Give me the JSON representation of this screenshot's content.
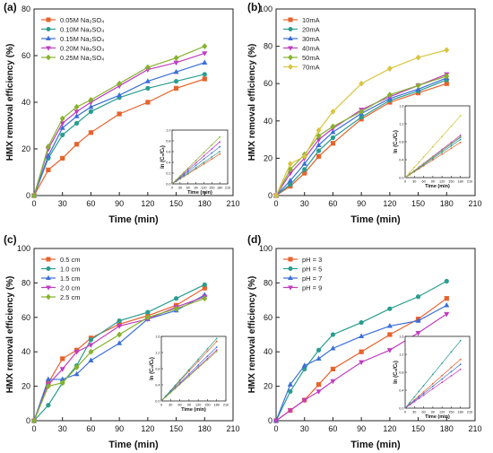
{
  "chart_data": [
    {
      "type": "line",
      "panel_label": "(a)",
      "xlabel": "Time (min)",
      "ylabel": "HMX removal efficiency (%)",
      "xlim": [
        0,
        210
      ],
      "ylim": [
        0,
        80
      ],
      "xticks": [
        "0",
        "30",
        "60",
        "90",
        "120",
        "150",
        "180",
        "210"
      ],
      "yticks": [
        "0",
        "20",
        "40",
        "60",
        "80"
      ],
      "x": [
        0,
        15,
        30,
        45,
        60,
        90,
        120,
        150,
        180
      ],
      "legend_position": "top-left",
      "series": [
        {
          "name": "0.05M Na₂SO₄",
          "color": "#e8622c",
          "marker": "square",
          "values": [
            0,
            11,
            16,
            22,
            27,
            35,
            40,
            46,
            50
          ]
        },
        {
          "name": "0.10M Na₂SO₄",
          "color": "#2a9d8f",
          "marker": "circle",
          "values": [
            0,
            16,
            26,
            31,
            36,
            42,
            46,
            49,
            52
          ]
        },
        {
          "name": "0.15M Na₂SO₄",
          "color": "#3b6fd8",
          "marker": "triangle-up",
          "values": [
            0,
            17,
            29,
            34,
            38,
            43,
            49,
            53,
            57
          ]
        },
        {
          "name": "0.20M Na₂SO₄",
          "color": "#c03cc0",
          "marker": "triangle-down",
          "values": [
            0,
            20,
            31,
            36,
            40,
            47,
            54,
            57,
            61
          ]
        },
        {
          "name": "0.25M Na₂SO₄",
          "color": "#86b22d",
          "marker": "diamond",
          "values": [
            0,
            21,
            33,
            38,
            41,
            48,
            55,
            59,
            64
          ]
        }
      ],
      "inset": {
        "type": "scatter",
        "ylabel": "ln (C₀/Cₜ)",
        "xlabel": "Time (min)",
        "xlim": [
          0,
          210
        ],
        "ylim": [
          0,
          1.2
        ],
        "xticks": [
          "0",
          "30",
          "60",
          "90",
          "120",
          "150",
          "180",
          "210"
        ],
        "yticks": [
          "0.0",
          "0.2",
          "0.4",
          "0.6",
          "0.8",
          "1.0"
        ],
        "slopes": [
          0.0037,
          0.004,
          0.0046,
          0.0052,
          0.0058
        ]
      }
    },
    {
      "type": "line",
      "panel_label": "(b)",
      "xlabel": "Time (min)",
      "ylabel": "HMX removal efficiency (%)",
      "xlim": [
        0,
        210
      ],
      "ylim": [
        0,
        100
      ],
      "xticks": [
        "0",
        "30",
        "60",
        "90",
        "120",
        "150",
        "180",
        "210"
      ],
      "yticks": [
        "0",
        "20",
        "40",
        "60",
        "80",
        "100"
      ],
      "x": [
        0,
        15,
        30,
        45,
        60,
        90,
        120,
        150,
        180
      ],
      "legend_position": "top-left",
      "series": [
        {
          "name": "10mA",
          "color": "#e8622c",
          "marker": "square",
          "values": [
            0,
            5,
            12,
            21,
            28,
            41,
            50,
            55,
            60
          ]
        },
        {
          "name": "20mA",
          "color": "#2a9d8f",
          "marker": "circle",
          "values": [
            0,
            6,
            14,
            24,
            31,
            42,
            51,
            56,
            62
          ]
        },
        {
          "name": "30mA",
          "color": "#3b6fd8",
          "marker": "triangle-up",
          "values": [
            0,
            8,
            17,
            27,
            34,
            44,
            52,
            57,
            63
          ]
        },
        {
          "name": "40mA",
          "color": "#c03cc0",
          "marker": "triangle-down",
          "values": [
            0,
            12,
            20,
            30,
            36,
            46,
            53,
            59,
            65
          ]
        },
        {
          "name": "50mA",
          "color": "#86b22d",
          "marker": "diamond",
          "values": [
            0,
            14,
            22,
            32,
            37,
            45,
            54,
            59,
            64
          ]
        },
        {
          "name": "70mA",
          "color": "#d9c441",
          "marker": "diamond",
          "values": [
            0,
            17,
            21,
            35,
            45,
            60,
            68,
            74,
            78
          ]
        }
      ],
      "inset": {
        "type": "scatter",
        "ylabel": "ln (C₀/Cₜ)",
        "xlabel": "Time (min)",
        "xlim": [
          0,
          210
        ],
        "ylim": [
          0,
          1.8
        ],
        "xticks": [
          "0",
          "30",
          "60",
          "90",
          "120",
          "150",
          "180",
          "210"
        ],
        "yticks": [
          "0.0",
          "0.4",
          "0.8",
          "1.2",
          "1.6"
        ],
        "slopes": [
          0.0049,
          0.0053,
          0.0056,
          0.0059,
          0.0057,
          0.0086
        ]
      }
    },
    {
      "type": "line",
      "panel_label": "(c)",
      "xlabel": "Time (min)",
      "ylabel": "HMX removal efficiency (%)",
      "xlim": [
        0,
        210
      ],
      "ylim": [
        0,
        100
      ],
      "xticks": [
        "0",
        "30",
        "60",
        "90",
        "120",
        "150",
        "180",
        "210"
      ],
      "yticks": [
        "0",
        "20",
        "40",
        "60",
        "80",
        "100"
      ],
      "x": [
        0,
        15,
        30,
        45,
        60,
        90,
        120,
        150,
        180
      ],
      "legend_position": "top-left",
      "series": [
        {
          "name": "0.5 cm",
          "color": "#e8622c",
          "marker": "square",
          "values": [
            0,
            22,
            36,
            41,
            48,
            56,
            61,
            67,
            77
          ]
        },
        {
          "name": "1.0 cm",
          "color": "#2a9d8f",
          "marker": "circle",
          "values": [
            0,
            9,
            22,
            32,
            47,
            58,
            63,
            71,
            79
          ]
        },
        {
          "name": "1.5 cm",
          "color": "#3b6fd8",
          "marker": "triangle-up",
          "values": [
            0,
            24,
            24,
            27,
            35,
            45,
            59,
            64,
            73
          ]
        },
        {
          "name": "2.0 cm",
          "color": "#c03cc0",
          "marker": "triangle-down",
          "values": [
            0,
            21,
            30,
            40,
            44,
            55,
            59,
            66,
            72
          ]
        },
        {
          "name": "2.5 cm",
          "color": "#86b22d",
          "marker": "diamond",
          "values": [
            0,
            20,
            22,
            31,
            40,
            50,
            60,
            65,
            71
          ]
        }
      ],
      "inset": {
        "type": "scatter",
        "ylabel": "ln (C₀/Cₜ)",
        "xlabel": "Time (min)",
        "xlim": [
          0,
          210
        ],
        "ylim": [
          0,
          1.6
        ],
        "xticks": [
          "0",
          "30",
          "60",
          "90",
          "120",
          "150",
          "180",
          "210"
        ],
        "yticks": [
          "0.0",
          "0.4",
          "0.8",
          "1.2",
          "1.6"
        ],
        "slopes": [
          0.0082,
          0.0086,
          0.0074,
          0.007,
          0.0068
        ]
      }
    },
    {
      "type": "line",
      "panel_label": "(d)",
      "xlabel": "Time (min)",
      "ylabel": "HMX removal efficiency (%)",
      "xlim": [
        0,
        210
      ],
      "ylim": [
        0,
        100
      ],
      "xticks": [
        "0",
        "30",
        "60",
        "90",
        "120",
        "150",
        "180",
        "210"
      ],
      "yticks": [
        "0",
        "20",
        "40",
        "60",
        "80",
        "100"
      ],
      "x": [
        0,
        15,
        30,
        45,
        60,
        90,
        120,
        150,
        180
      ],
      "legend_position": "top-left",
      "series": [
        {
          "name": "pH = 3",
          "color": "#e8622c",
          "marker": "square",
          "values": [
            0,
            6,
            12,
            21,
            30,
            40,
            50,
            59,
            71
          ]
        },
        {
          "name": "pH = 5",
          "color": "#2a9d8f",
          "marker": "circle",
          "values": [
            0,
            17,
            30,
            41,
            50,
            57,
            65,
            72,
            81
          ]
        },
        {
          "name": "pH = 7",
          "color": "#3b6fd8",
          "marker": "triangle-up",
          "values": [
            0,
            21,
            32,
            36,
            42,
            49,
            55,
            58,
            67
          ]
        },
        {
          "name": "pH = 9",
          "color": "#c03cc0",
          "marker": "triangle-down",
          "values": [
            0,
            6,
            12,
            17,
            23,
            34,
            41,
            51,
            62
          ]
        }
      ],
      "inset": {
        "type": "scatter",
        "ylabel": "ln (C₀/Cₜ)",
        "xlabel": "Time (min)",
        "xlim": [
          0,
          210
        ],
        "ylim": [
          0,
          1.8
        ],
        "xticks": [
          "0",
          "30",
          "60",
          "90",
          "120",
          "150",
          "180",
          "210"
        ],
        "yticks": [
          "0.0",
          "0.4",
          "0.8",
          "1.2",
          "1.6"
        ],
        "slopes": [
          0.0068,
          0.0094,
          0.0061,
          0.0054
        ]
      }
    }
  ]
}
